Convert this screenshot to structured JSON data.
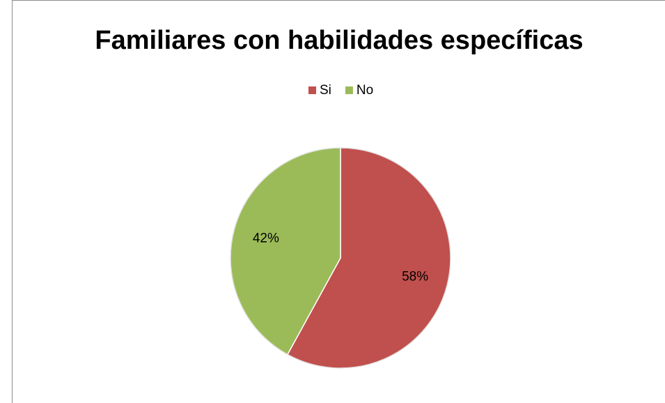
{
  "chart_data": {
    "type": "pie",
    "title": "Familiares con habilidades específicas",
    "categories": [
      "Si",
      "No"
    ],
    "values": [
      58,
      42
    ],
    "value_labels": [
      "58%",
      "42%"
    ],
    "colors": [
      "#c0504d",
      "#9bbb59"
    ],
    "legend": "top"
  }
}
